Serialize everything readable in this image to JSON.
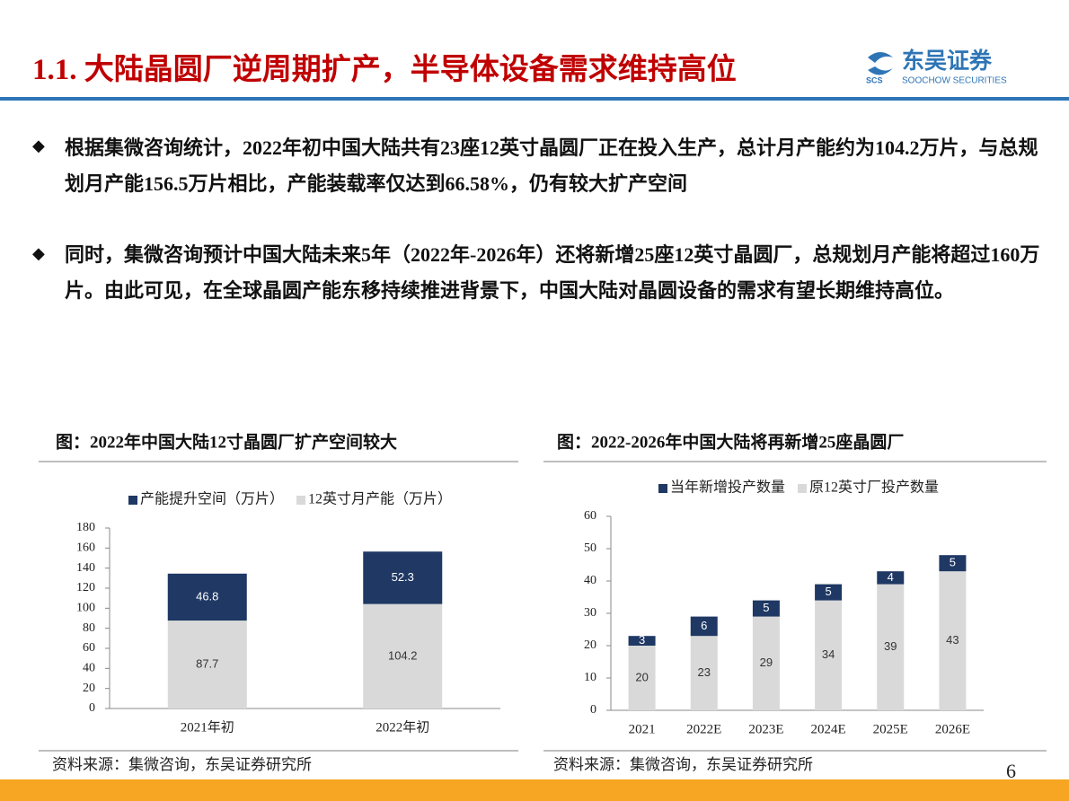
{
  "header": {
    "title": "1.1. 大陆晶圆厂逆周期扩产，半导体设备需求维持高位",
    "logo_cn": "东吴证券",
    "logo_mark": "SCS",
    "logo_en": "SOOCHOW SECURITIES"
  },
  "bullets": [
    "根据集微咨询统计，2022年初中国大陆共有23座12英寸晶圆厂正在投入生产，总计月产能约为104.2万片，与总规划月产能156.5万片相比，产能装载率仅达到66.58%，仍有较大扩产空间",
    "同时，集微咨询预计中国大陆未来5年（2022年-2026年）还将新增25座12英寸晶圆厂，总规划月产能将超过160万片。由此可见，在全球晶圆产能东移持续推进背景下，中国大陆对晶圆设备的需求有望长期维持高位。"
  ],
  "chart_data": [
    {
      "type": "bar",
      "stacked": true,
      "title": "图：2022年中国大陆12寸晶圆厂扩产空间较大",
      "categories": [
        "2021年初",
        "2022年初"
      ],
      "series": [
        {
          "name": "产能提升空间（万片）",
          "color": "#1f3864",
          "values": [
            46.8,
            52.3
          ]
        },
        {
          "name": "12英寸月产能（万片）",
          "color": "#d9d9d9",
          "values": [
            87.7,
            104.2
          ]
        }
      ],
      "ylim": [
        0,
        180
      ],
      "yticks": [
        0,
        20,
        40,
        60,
        80,
        100,
        120,
        140,
        160,
        180
      ],
      "source": "资料来源：集微咨询，东吴证券研究所"
    },
    {
      "type": "bar",
      "stacked": true,
      "title": "图：2022-2026年中国大陆将再新增25座晶圆厂",
      "categories": [
        "2021",
        "2022E",
        "2023E",
        "2024E",
        "2025E",
        "2026E"
      ],
      "series": [
        {
          "name": "当年新增投产数量",
          "color": "#1f3864",
          "values": [
            3,
            6,
            5,
            5,
            4,
            5
          ]
        },
        {
          "name": "原12英寸厂投产数量",
          "color": "#d9d9d9",
          "values": [
            20,
            23,
            29,
            34,
            39,
            43
          ]
        }
      ],
      "ylim": [
        0,
        60
      ],
      "yticks": [
        0,
        10,
        20,
        30,
        40,
        50,
        60
      ],
      "source": "资料来源：集微咨询，东吴证券研究所"
    }
  ],
  "page_number": "6"
}
